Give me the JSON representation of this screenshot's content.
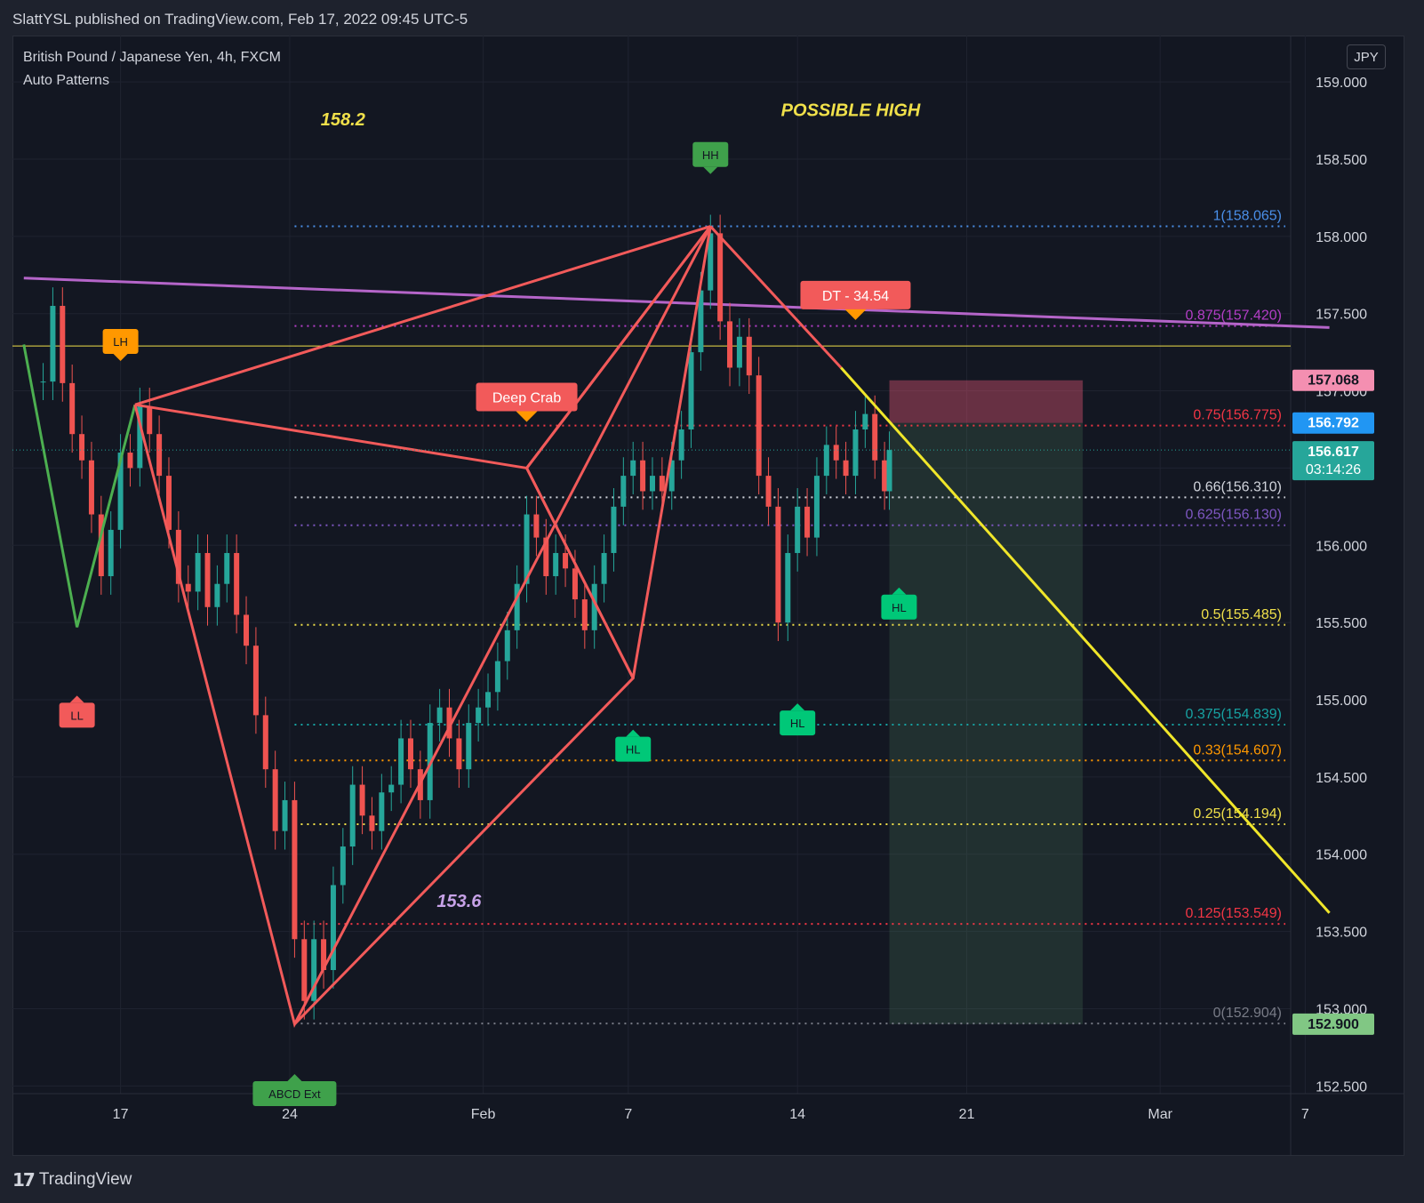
{
  "header": {
    "published": "SlattYSL published on TradingView.com, Feb 17, 2022 09:45 UTC-5"
  },
  "footer": {
    "brand": "TradingView",
    "logo_glyph": "17"
  },
  "legend": {
    "symbol": "British Pound / Japanese Yen, 4h, FXCM",
    "indicator": "Auto Patterns"
  },
  "currency_button": "JPY",
  "colors": {
    "background": "#131722",
    "up": "#26a69a",
    "down": "#ef5350",
    "pattern": "#f25a5a",
    "trendline_purple": "#b565c9",
    "trendline_yellow": "#f0e62a",
    "level_yellow": "#f0e04a"
  },
  "chart_data": {
    "type": "candlestick",
    "symbol": "GBPJPY",
    "timeframe": "4h",
    "y_range": [
      152.45,
      159.3
    ],
    "y_ticks": [
      "159.000",
      "158.500",
      "158.000",
      "157.500",
      "157.000",
      "156.500",
      "156.000",
      "155.500",
      "155.000",
      "154.500",
      "154.000",
      "153.500",
      "153.000",
      "152.500"
    ],
    "x_ticks": [
      {
        "label": "17",
        "day": 17
      },
      {
        "label": "24",
        "day": 24
      },
      {
        "label": "Feb",
        "day": 32
      },
      {
        "label": "7",
        "day": 38
      },
      {
        "label": "14",
        "day": 45
      },
      {
        "label": "21",
        "day": 52
      },
      {
        "label": "Mar",
        "day": 60
      },
      {
        "label": "7",
        "day": 66
      }
    ],
    "candles": [
      [
        13.8,
        157.06
      ],
      [
        14.2,
        157.55
      ],
      [
        14.6,
        157.05
      ],
      [
        15.0,
        156.72
      ],
      [
        15.4,
        156.55
      ],
      [
        15.8,
        156.2
      ],
      [
        16.2,
        155.8
      ],
      [
        16.6,
        156.1
      ],
      [
        17.0,
        156.6
      ],
      [
        17.4,
        156.5
      ],
      [
        17.8,
        156.9
      ],
      [
        18.2,
        156.72
      ],
      [
        18.6,
        156.45
      ],
      [
        19.0,
        156.1
      ],
      [
        19.4,
        155.75
      ],
      [
        19.8,
        155.7
      ],
      [
        20.2,
        155.95
      ],
      [
        20.6,
        155.6
      ],
      [
        21.0,
        155.75
      ],
      [
        21.4,
        155.95
      ],
      [
        21.8,
        155.55
      ],
      [
        22.2,
        155.35
      ],
      [
        22.6,
        154.9
      ],
      [
        23.0,
        154.55
      ],
      [
        23.4,
        154.15
      ],
      [
        23.8,
        154.35
      ],
      [
        24.2,
        153.45
      ],
      [
        24.6,
        153.05
      ],
      [
        25.0,
        153.45
      ],
      [
        25.4,
        153.25
      ],
      [
        25.8,
        153.8
      ],
      [
        26.2,
        154.05
      ],
      [
        26.6,
        154.45
      ],
      [
        27.0,
        154.25
      ],
      [
        27.4,
        154.15
      ],
      [
        27.8,
        154.4
      ],
      [
        28.2,
        154.45
      ],
      [
        28.6,
        154.75
      ],
      [
        29.0,
        154.55
      ],
      [
        29.4,
        154.35
      ],
      [
        29.8,
        154.85
      ],
      [
        30.2,
        154.95
      ],
      [
        30.6,
        154.75
      ],
      [
        31.0,
        154.55
      ],
      [
        31.4,
        154.85
      ],
      [
        31.8,
        154.95
      ],
      [
        32.2,
        155.05
      ],
      [
        32.6,
        155.25
      ],
      [
        33.0,
        155.45
      ],
      [
        33.4,
        155.75
      ],
      [
        33.8,
        156.2
      ],
      [
        34.2,
        156.05
      ],
      [
        34.6,
        155.8
      ],
      [
        35.0,
        155.95
      ],
      [
        35.4,
        155.85
      ],
      [
        35.8,
        155.65
      ],
      [
        36.2,
        155.45
      ],
      [
        36.6,
        155.75
      ],
      [
        37.0,
        155.95
      ],
      [
        37.4,
        156.25
      ],
      [
        37.8,
        156.45
      ],
      [
        38.2,
        156.55
      ],
      [
        38.6,
        156.35
      ],
      [
        39.0,
        156.45
      ],
      [
        39.4,
        156.35
      ],
      [
        39.8,
        156.55
      ],
      [
        40.2,
        156.75
      ],
      [
        40.6,
        157.25
      ],
      [
        41.0,
        157.65
      ],
      [
        41.4,
        158.02
      ],
      [
        41.8,
        157.45
      ],
      [
        42.2,
        157.15
      ],
      [
        42.6,
        157.35
      ],
      [
        43.0,
        157.1
      ],
      [
        43.4,
        156.45
      ],
      [
        43.8,
        156.25
      ],
      [
        44.2,
        155.5
      ],
      [
        44.6,
        155.95
      ],
      [
        45.0,
        156.25
      ],
      [
        45.4,
        156.05
      ],
      [
        45.8,
        156.45
      ],
      [
        46.2,
        156.65
      ],
      [
        46.6,
        156.55
      ],
      [
        47.0,
        156.45
      ],
      [
        47.4,
        156.75
      ],
      [
        47.8,
        156.85
      ],
      [
        48.2,
        156.55
      ],
      [
        48.6,
        156.35
      ],
      [
        48.8,
        156.617
      ]
    ],
    "levels": [
      {
        "label": "1(158.065)",
        "value": 158.065,
        "color": "#4a8fe8"
      },
      {
        "label": "0.875(157.420)",
        "value": 157.42,
        "color": "#b43ec7"
      },
      {
        "label": "0.75(156.775)",
        "value": 156.775,
        "color": "#f23645"
      },
      {
        "label": "0.66(156.310)",
        "value": 156.31,
        "color": "#d1d4dc"
      },
      {
        "label": "0.625(156.130)",
        "value": 156.13,
        "color": "#7e57c2"
      },
      {
        "label": "0.5(155.485)",
        "value": 155.485,
        "color": "#f0e04a"
      },
      {
        "label": "0.375(154.839)",
        "value": 154.839,
        "color": "#17a2a2"
      },
      {
        "label": "0.33(154.607)",
        "value": 154.607,
        "color": "#ff9800"
      },
      {
        "label": "0.25(154.194)",
        "value": 154.194,
        "color": "#f0e04a"
      },
      {
        "label": "0.125(153.549)",
        "value": 153.549,
        "color": "#f23645"
      },
      {
        "label": "0(152.904)",
        "value": 152.904,
        "color": "#787b86"
      }
    ],
    "horizontal_line": 157.29,
    "purple_trendline": [
      [
        13.0,
        157.73
      ],
      [
        67.0,
        157.41
      ]
    ],
    "zigzag_green": [
      [
        13.0,
        157.3
      ],
      [
        15.2,
        155.47
      ],
      [
        17.6,
        156.91
      ]
    ],
    "deep_crab_xabcd": [
      [
        17.6,
        156.91
      ],
      [
        24.2,
        152.9
      ],
      [
        41.4,
        158.065
      ],
      [
        33.8,
        156.5
      ],
      [
        38.2,
        155.14
      ],
      [
        24.2,
        152.9
      ]
    ],
    "pattern_extra": [
      [
        17.6,
        156.91
      ],
      [
        33.8,
        156.5
      ],
      [
        38.2,
        155.14
      ]
    ],
    "yellow_trendline": [
      [
        46.8,
        157.15
      ],
      [
        67.0,
        153.62
      ]
    ],
    "trade_box": {
      "x0": 48.8,
      "x1": 56.8,
      "entry": 156.792,
      "stop": 157.068,
      "target": 152.9
    },
    "price_tags": [
      {
        "label": "157.068",
        "value": 157.068,
        "bg": "#f48fb1",
        "fg": "#131722"
      },
      {
        "label": "156.792",
        "value": 156.792,
        "bg": "#2196f3",
        "fg": "#ffffff"
      },
      {
        "label": "156.617",
        "sublabel": "03:14:26",
        "value": 156.617,
        "bg": "#26a69a",
        "fg": "#ffffff"
      },
      {
        "label": "152.900",
        "value": 152.9,
        "bg": "#81c784",
        "fg": "#131722"
      }
    ],
    "annotations": [
      {
        "text": "158.2",
        "x": 26.2,
        "y": 158.72,
        "color": "#f0e04a"
      },
      {
        "text": "POSSIBLE HIGH",
        "x": 47.2,
        "y": 158.78,
        "color": "#f0e04a"
      },
      {
        "text": "153.6",
        "x": 31.0,
        "y": 153.66,
        "color": "#c7a2e8"
      }
    ],
    "markers": [
      {
        "text": "HH",
        "x": 41.4,
        "y": 158.53,
        "dir": "down",
        "bg": "#3fa14b"
      },
      {
        "text": "LH",
        "x": 17.0,
        "y": 157.32,
        "dir": "down",
        "bg": "#ff9800"
      },
      {
        "text": "LL",
        "x": 15.2,
        "y": 154.9,
        "dir": "up",
        "bg": "#f25a5a"
      },
      {
        "text": "HL",
        "x": 38.2,
        "y": 154.68,
        "dir": "up",
        "bg": "#00c878"
      },
      {
        "text": "HL",
        "x": 45.0,
        "y": 154.85,
        "dir": "up",
        "bg": "#00c878"
      },
      {
        "text": "HL",
        "x": 49.2,
        "y": 155.6,
        "dir": "up",
        "bg": "#00c878"
      },
      {
        "text": "ABCD Ext",
        "x": 24.2,
        "y": 152.45,
        "dir": "up",
        "bg": "#3fa14b"
      }
    ],
    "labels": [
      {
        "text": "DT - 34.54",
        "x": 47.4,
        "y": 157.62,
        "bg": "#f25a5a",
        "arrow": "#ff9800"
      },
      {
        "text": "Deep Crab",
        "x": 33.8,
        "y": 156.96,
        "bg": "#f25a5a",
        "arrow": "#ff9800"
      }
    ]
  }
}
